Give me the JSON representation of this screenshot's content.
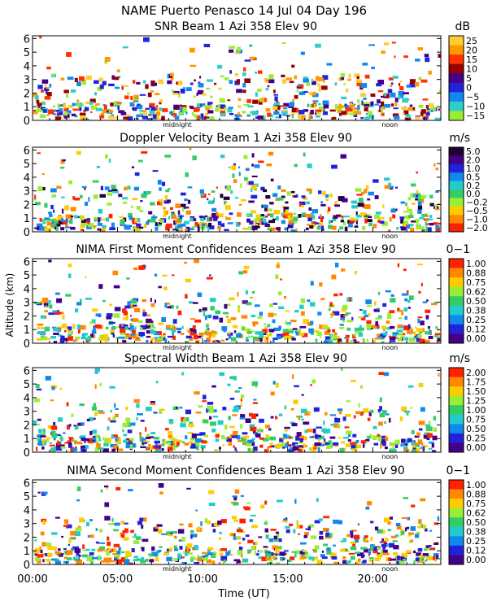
{
  "figure": {
    "title": "NAME Puerto Penasco   14 Jul 04 Day 196",
    "xlabel": "Time (UT)",
    "ylabel": "Altitude (km)",
    "x_ticks": [
      "00:00",
      "05:00",
      "10:00",
      "15:00",
      "20:00"
    ],
    "x_tick_hours": [
      0,
      5,
      10,
      15,
      20
    ],
    "xlim_hours": [
      0,
      24
    ],
    "day_markers": [
      {
        "label": "midnight",
        "hour": 8.5
      },
      {
        "label": "noon",
        "hour": 21.0
      }
    ]
  },
  "chart_data": [
    {
      "type": "heatmap",
      "title": "SNR Beam 1 Azi 358 Elev 90",
      "unit": "dB",
      "ylim": [
        0,
        6.2
      ],
      "y_ticks": [
        0,
        1,
        2,
        3,
        4,
        5,
        6
      ],
      "colorbar_labels": [
        "25",
        "20",
        "15",
        "10",
        "5",
        "0",
        "−5",
        "−10",
        "−15"
      ],
      "colorbar_colors": [
        "#ffcc33",
        "#ff9900",
        "#ff3300",
        "#990000",
        "#440088",
        "#2222dd",
        "#1188ee",
        "#33cccc",
        "#99ee33"
      ]
    },
    {
      "type": "heatmap",
      "title": "Doppler Velocity Beam 1 Azi 358 Elev 90",
      "unit": "m/s",
      "ylim": [
        0,
        6.2
      ],
      "y_ticks": [
        0,
        1,
        2,
        3,
        4,
        5,
        6
      ],
      "colorbar_labels": [
        "5.0",
        "2.0",
        "1.0",
        "0.5",
        "0.2",
        "0.0",
        "−0.2",
        "−0.5",
        "−1.0",
        "−2.0"
      ],
      "colorbar_colors": [
        "#220033",
        "#440088",
        "#2222dd",
        "#1188ee",
        "#22cccc",
        "#33cc66",
        "#99ee33",
        "#ffcc00",
        "#ff8800",
        "#ff2200"
      ]
    },
    {
      "type": "heatmap",
      "title": "NIMA First Moment Confidences Beam 1 Azi 358 Elev 90",
      "unit": "0−1",
      "ylim": [
        0,
        6.2
      ],
      "y_ticks": [
        0,
        1,
        2,
        3,
        4,
        5,
        6
      ],
      "colorbar_labels": [
        "1.00",
        "0.88",
        "0.75",
        "0.62",
        "0.50",
        "0.38",
        "0.25",
        "0.12",
        "0.00"
      ],
      "colorbar_colors": [
        "#ff2200",
        "#ff8800",
        "#ffcc00",
        "#99ee33",
        "#33cc66",
        "#22cccc",
        "#1188ee",
        "#2222dd",
        "#440088"
      ]
    },
    {
      "type": "heatmap",
      "title": "Spectral Width Beam 1 Azi 358 Elev 90",
      "unit": "m/s",
      "ylim": [
        0,
        6.2
      ],
      "y_ticks": [
        0,
        1,
        2,
        3,
        4,
        5,
        6
      ],
      "colorbar_labels": [
        "2.00",
        "1.75",
        "1.50",
        "1.25",
        "1.00",
        "0.75",
        "0.50",
        "0.25",
        "0.00"
      ],
      "colorbar_colors": [
        "#ff2200",
        "#ff8800",
        "#ffcc00",
        "#99ee33",
        "#33cc66",
        "#22cccc",
        "#1188ee",
        "#2222dd",
        "#440088"
      ]
    },
    {
      "type": "heatmap",
      "title": "NIMA Second Moment Confidences Beam 1 Azi 358 Elev 90",
      "unit": "0−1",
      "ylim": [
        0,
        6.2
      ],
      "y_ticks": [
        0,
        1,
        2,
        3,
        4,
        5,
        6
      ],
      "colorbar_labels": [
        "1.00",
        "0.88",
        "0.75",
        "0.62",
        "0.50",
        "0.38",
        "0.25",
        "0.12",
        "0.00"
      ],
      "colorbar_colors": [
        "#ff2200",
        "#ff8800",
        "#ffcc00",
        "#99ee33",
        "#33cc66",
        "#22cccc",
        "#1188ee",
        "#2222dd",
        "#440088"
      ]
    }
  ]
}
